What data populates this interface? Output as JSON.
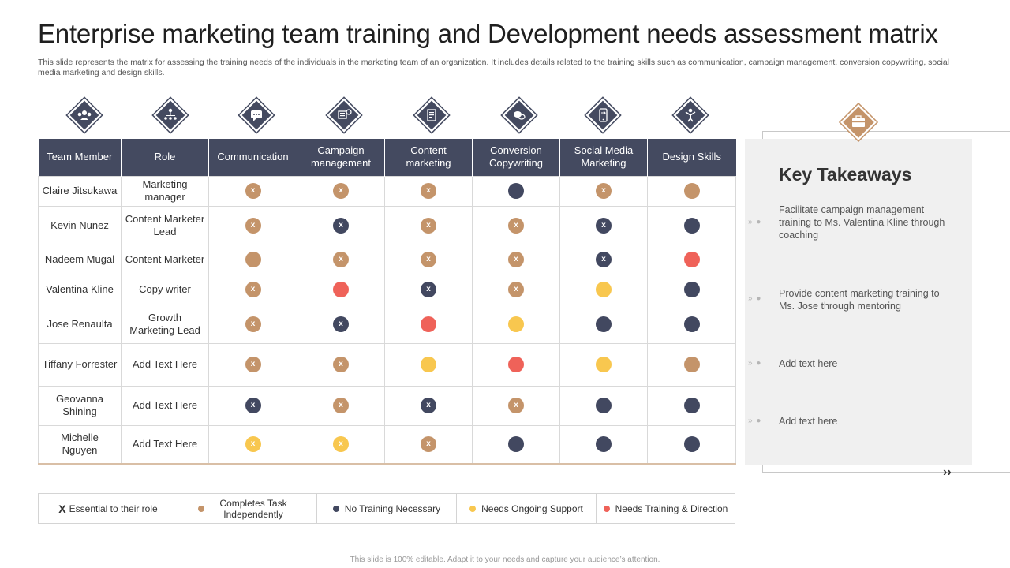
{
  "title": "Enterprise marketing team training and Development needs assessment matrix",
  "subtitle": "This slide represents the matrix for assessing the training needs of the individuals in the marketing team of an organization. It includes details related to the training skills such as communication, campaign management, conversion copywriting, social media marketing and design skills.",
  "icons": [
    "team-icon",
    "org-chart-icon",
    "chat-bubble-icon",
    "campaign-icon",
    "document-icon",
    "conversion-icon",
    "mobile-social-icon",
    "design-person-icon"
  ],
  "table": {
    "headers": [
      "Team Member",
      "Role",
      "Communication",
      "Campaign management",
      "Content marketing",
      "Conversion Copywriting",
      "Social Media Marketing",
      "Design Skills"
    ],
    "rows": [
      {
        "member": "Claire Jitsukawa",
        "role": "Marketing manager",
        "cells": [
          [
            "tan",
            "x"
          ],
          [
            "tan",
            "x"
          ],
          [
            "tan",
            "x"
          ],
          [
            "navy",
            ""
          ],
          [
            "tan",
            "x"
          ],
          [
            "tan",
            ""
          ]
        ]
      },
      {
        "member": "Kevin Nunez",
        "role": "Content Marketer Lead",
        "cells": [
          [
            "tan",
            "x"
          ],
          [
            "navy",
            "x"
          ],
          [
            "tan",
            "x"
          ],
          [
            "tan",
            "x"
          ],
          [
            "navy",
            "x"
          ],
          [
            "navy",
            ""
          ]
        ]
      },
      {
        "member": "Nadeem Mugal",
        "role": "Content Marketer",
        "cells": [
          [
            "tan",
            ""
          ],
          [
            "tan",
            "x"
          ],
          [
            "tan",
            "x"
          ],
          [
            "tan",
            "x"
          ],
          [
            "navy",
            "x"
          ],
          [
            "red",
            ""
          ]
        ]
      },
      {
        "member": "Valentina Kline",
        "role": "Copy writer",
        "cells": [
          [
            "tan",
            "x"
          ],
          [
            "red",
            ""
          ],
          [
            "navy",
            "x"
          ],
          [
            "tan",
            "x"
          ],
          [
            "yellow",
            ""
          ],
          [
            "navy",
            ""
          ]
        ]
      },
      {
        "member": "Jose Renaulta",
        "role": "Growth Marketing Lead",
        "cells": [
          [
            "tan",
            "x"
          ],
          [
            "navy",
            "x"
          ],
          [
            "red",
            ""
          ],
          [
            "yellow",
            ""
          ],
          [
            "navy",
            ""
          ],
          [
            "navy",
            ""
          ]
        ]
      },
      {
        "member": "Tiffany Forrester",
        "role": "Add Text Here",
        "cells": [
          [
            "tan",
            "x"
          ],
          [
            "tan",
            "x"
          ],
          [
            "yellow",
            ""
          ],
          [
            "red",
            ""
          ],
          [
            "yellow",
            ""
          ],
          [
            "tan",
            ""
          ]
        ]
      },
      {
        "member": "Geovanna Shining",
        "role": "Add Text Here",
        "cells": [
          [
            "navy",
            "x"
          ],
          [
            "tan",
            "x"
          ],
          [
            "navy",
            "x"
          ],
          [
            "tan",
            "x"
          ],
          [
            "navy",
            ""
          ],
          [
            "navy",
            ""
          ]
        ]
      },
      {
        "member": "Michelle Nguyen",
        "role": "Add Text Here",
        "cells": [
          [
            "yellow",
            "x"
          ],
          [
            "yellow",
            "x"
          ],
          [
            "tan",
            "x"
          ],
          [
            "navy",
            ""
          ],
          [
            "navy",
            ""
          ],
          [
            "navy",
            ""
          ]
        ]
      }
    ]
  },
  "legend": {
    "x_mark": "X",
    "essential": "Essential to their role",
    "completes": "Completes Task Independently",
    "no_training": "No Training Necessary",
    "ongoing": "Needs Ongoing Support",
    "needs_training": "Needs Training & Direction"
  },
  "colors": {
    "tan": "#c4946a",
    "navy": "#424860",
    "yellow": "#f8c74f",
    "red": "#ef6259"
  },
  "takeaways": {
    "title": "Key Takeaways",
    "badge_icon": "briefcase-icon",
    "items": [
      "Facilitate campaign management training to Ms. Valentina Kline through coaching",
      "Provide content marketing training to Ms. Jose through mentoring",
      "Add text here",
      "Add text here"
    ]
  },
  "footer": "This slide is 100% editable. Adapt it to your needs and capture your audience’s attention."
}
